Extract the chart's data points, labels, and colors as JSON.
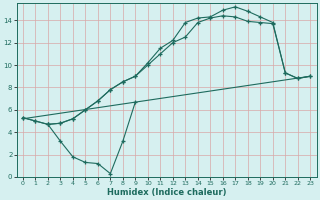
{
  "xlabel": "Humidex (Indice chaleur)",
  "bg_color": "#d6f0f0",
  "grid_color": "#c8e8e8",
  "line_color": "#1e6b5e",
  "xlim": [
    -0.5,
    23.5
  ],
  "ylim": [
    0,
    15.5
  ],
  "xticks": [
    0,
    1,
    2,
    3,
    4,
    5,
    6,
    7,
    8,
    9,
    10,
    11,
    12,
    13,
    14,
    15,
    16,
    17,
    18,
    19,
    20,
    21,
    22,
    23
  ],
  "yticks": [
    0,
    2,
    4,
    6,
    8,
    10,
    12,
    14
  ],
  "line1_x": [
    0,
    1,
    2,
    3,
    4,
    5,
    6,
    7,
    8,
    9,
    10,
    11,
    12,
    13,
    14,
    15,
    16,
    17,
    18,
    19,
    20,
    21,
    22,
    23
  ],
  "line1_y": [
    5.3,
    5.0,
    4.7,
    4.8,
    5.2,
    6.0,
    6.8,
    7.8,
    8.5,
    9.0,
    10.2,
    11.5,
    12.2,
    13.8,
    14.2,
    14.3,
    14.9,
    15.2,
    14.8,
    14.3,
    13.8,
    9.3,
    8.8,
    9.0
  ],
  "line2_x": [
    0,
    1,
    2,
    3,
    4,
    5,
    6,
    7,
    8,
    9,
    10,
    11,
    12,
    13,
    14,
    15,
    16,
    17,
    18,
    19,
    20,
    21,
    22,
    23
  ],
  "line2_y": [
    5.3,
    5.0,
    4.7,
    4.8,
    5.2,
    6.0,
    6.8,
    7.8,
    8.5,
    9.0,
    10.0,
    11.0,
    12.0,
    12.5,
    13.8,
    14.2,
    14.4,
    14.3,
    13.9,
    13.8,
    13.7,
    9.3,
    8.8,
    9.0
  ],
  "line3_x": [
    0,
    23
  ],
  "line3_y": [
    5.2,
    9.0
  ],
  "line4_x": [
    2,
    3,
    4,
    5,
    6,
    7,
    8,
    9
  ],
  "line4_y": [
    4.7,
    3.2,
    1.8,
    1.3,
    1.2,
    0.3,
    3.2,
    6.7
  ]
}
